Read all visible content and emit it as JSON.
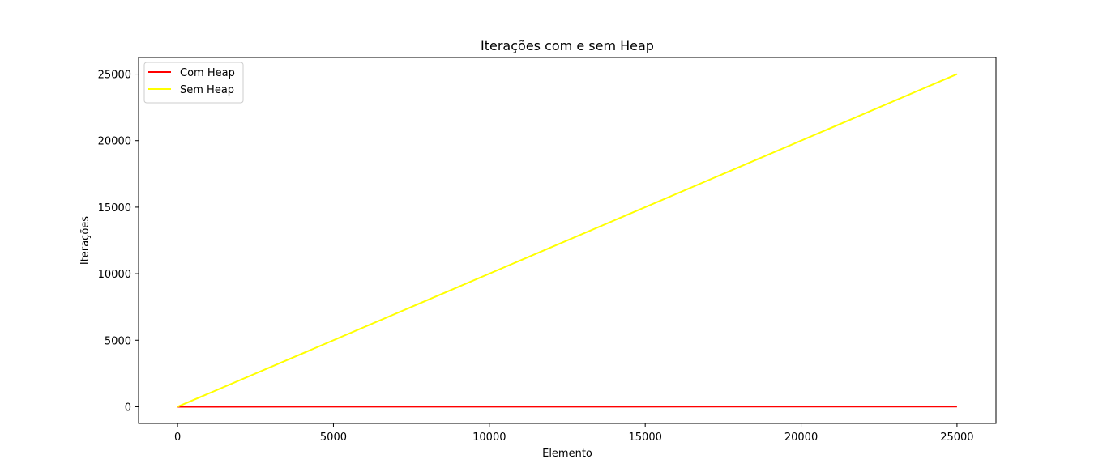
{
  "chart_data": {
    "type": "line",
    "title": "Iterações com e sem Heap",
    "xlabel": "Elemento",
    "ylabel": "Iterações",
    "xlim": [
      -1250,
      26250
    ],
    "ylim": [
      -1250,
      26250
    ],
    "xticks": [
      0,
      5000,
      10000,
      15000,
      20000,
      25000
    ],
    "yticks": [
      0,
      5000,
      10000,
      15000,
      20000,
      25000
    ],
    "grid": false,
    "legend_position": "top-left",
    "series": [
      {
        "name": "Com Heap",
        "color": "#ff0000",
        "x": [
          0,
          25000
        ],
        "y": [
          0,
          15
        ]
      },
      {
        "name": "Sem Heap",
        "color": "#ffff00",
        "x": [
          0,
          25000
        ],
        "y": [
          0,
          25000
        ]
      }
    ]
  }
}
